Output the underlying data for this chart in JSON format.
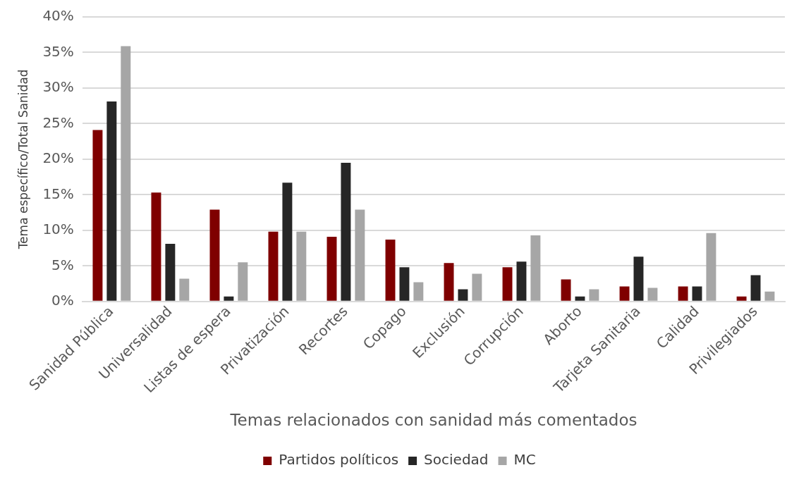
{
  "chart_data": {
    "type": "bar",
    "xlabel": "Temas relacionados con sanidad más comentados",
    "ylabel": "Tema específico/Total Sanidad",
    "categories": [
      "Sanidad Pública",
      "Universalidad",
      "Listas de espera",
      "Privatización",
      "Recortes",
      "Copago",
      "Exclusión",
      "Corrupción",
      "Aborto",
      "Tarjeta Sanitaria",
      "Calidad",
      "Privilegiados"
    ],
    "series": [
      {
        "name": "Partidos políticos",
        "color": "#7f0000",
        "values": [
          24.1,
          15.3,
          12.9,
          9.8,
          9.1,
          8.7,
          5.4,
          4.8,
          3.1,
          2.1,
          2.1,
          0.7
        ]
      },
      {
        "name": "Sociedad",
        "color": "#262626",
        "values": [
          28.1,
          8.1,
          0.7,
          16.7,
          19.5,
          4.8,
          1.7,
          5.6,
          0.7,
          6.3,
          2.1,
          3.7
        ]
      },
      {
        "name": "MC",
        "color": "#a6a6a6",
        "values": [
          35.9,
          3.2,
          5.5,
          9.8,
          12.9,
          2.7,
          3.9,
          9.3,
          1.7,
          1.9,
          9.6,
          1.4
        ]
      }
    ],
    "ylim": [
      0,
      40
    ],
    "yticks": [
      {
        "value": 0,
        "label": "0%"
      },
      {
        "value": 5,
        "label": "5%"
      },
      {
        "value": 10,
        "label": "10%"
      },
      {
        "value": 15,
        "label": "15%"
      },
      {
        "value": 20,
        "label": "20%"
      },
      {
        "value": 25,
        "label": "25%"
      },
      {
        "value": 30,
        "label": "30%"
      },
      {
        "value": 35,
        "label": "35%"
      },
      {
        "value": 40,
        "label": "40%"
      }
    ],
    "grid": "y",
    "legend": "bottom"
  }
}
